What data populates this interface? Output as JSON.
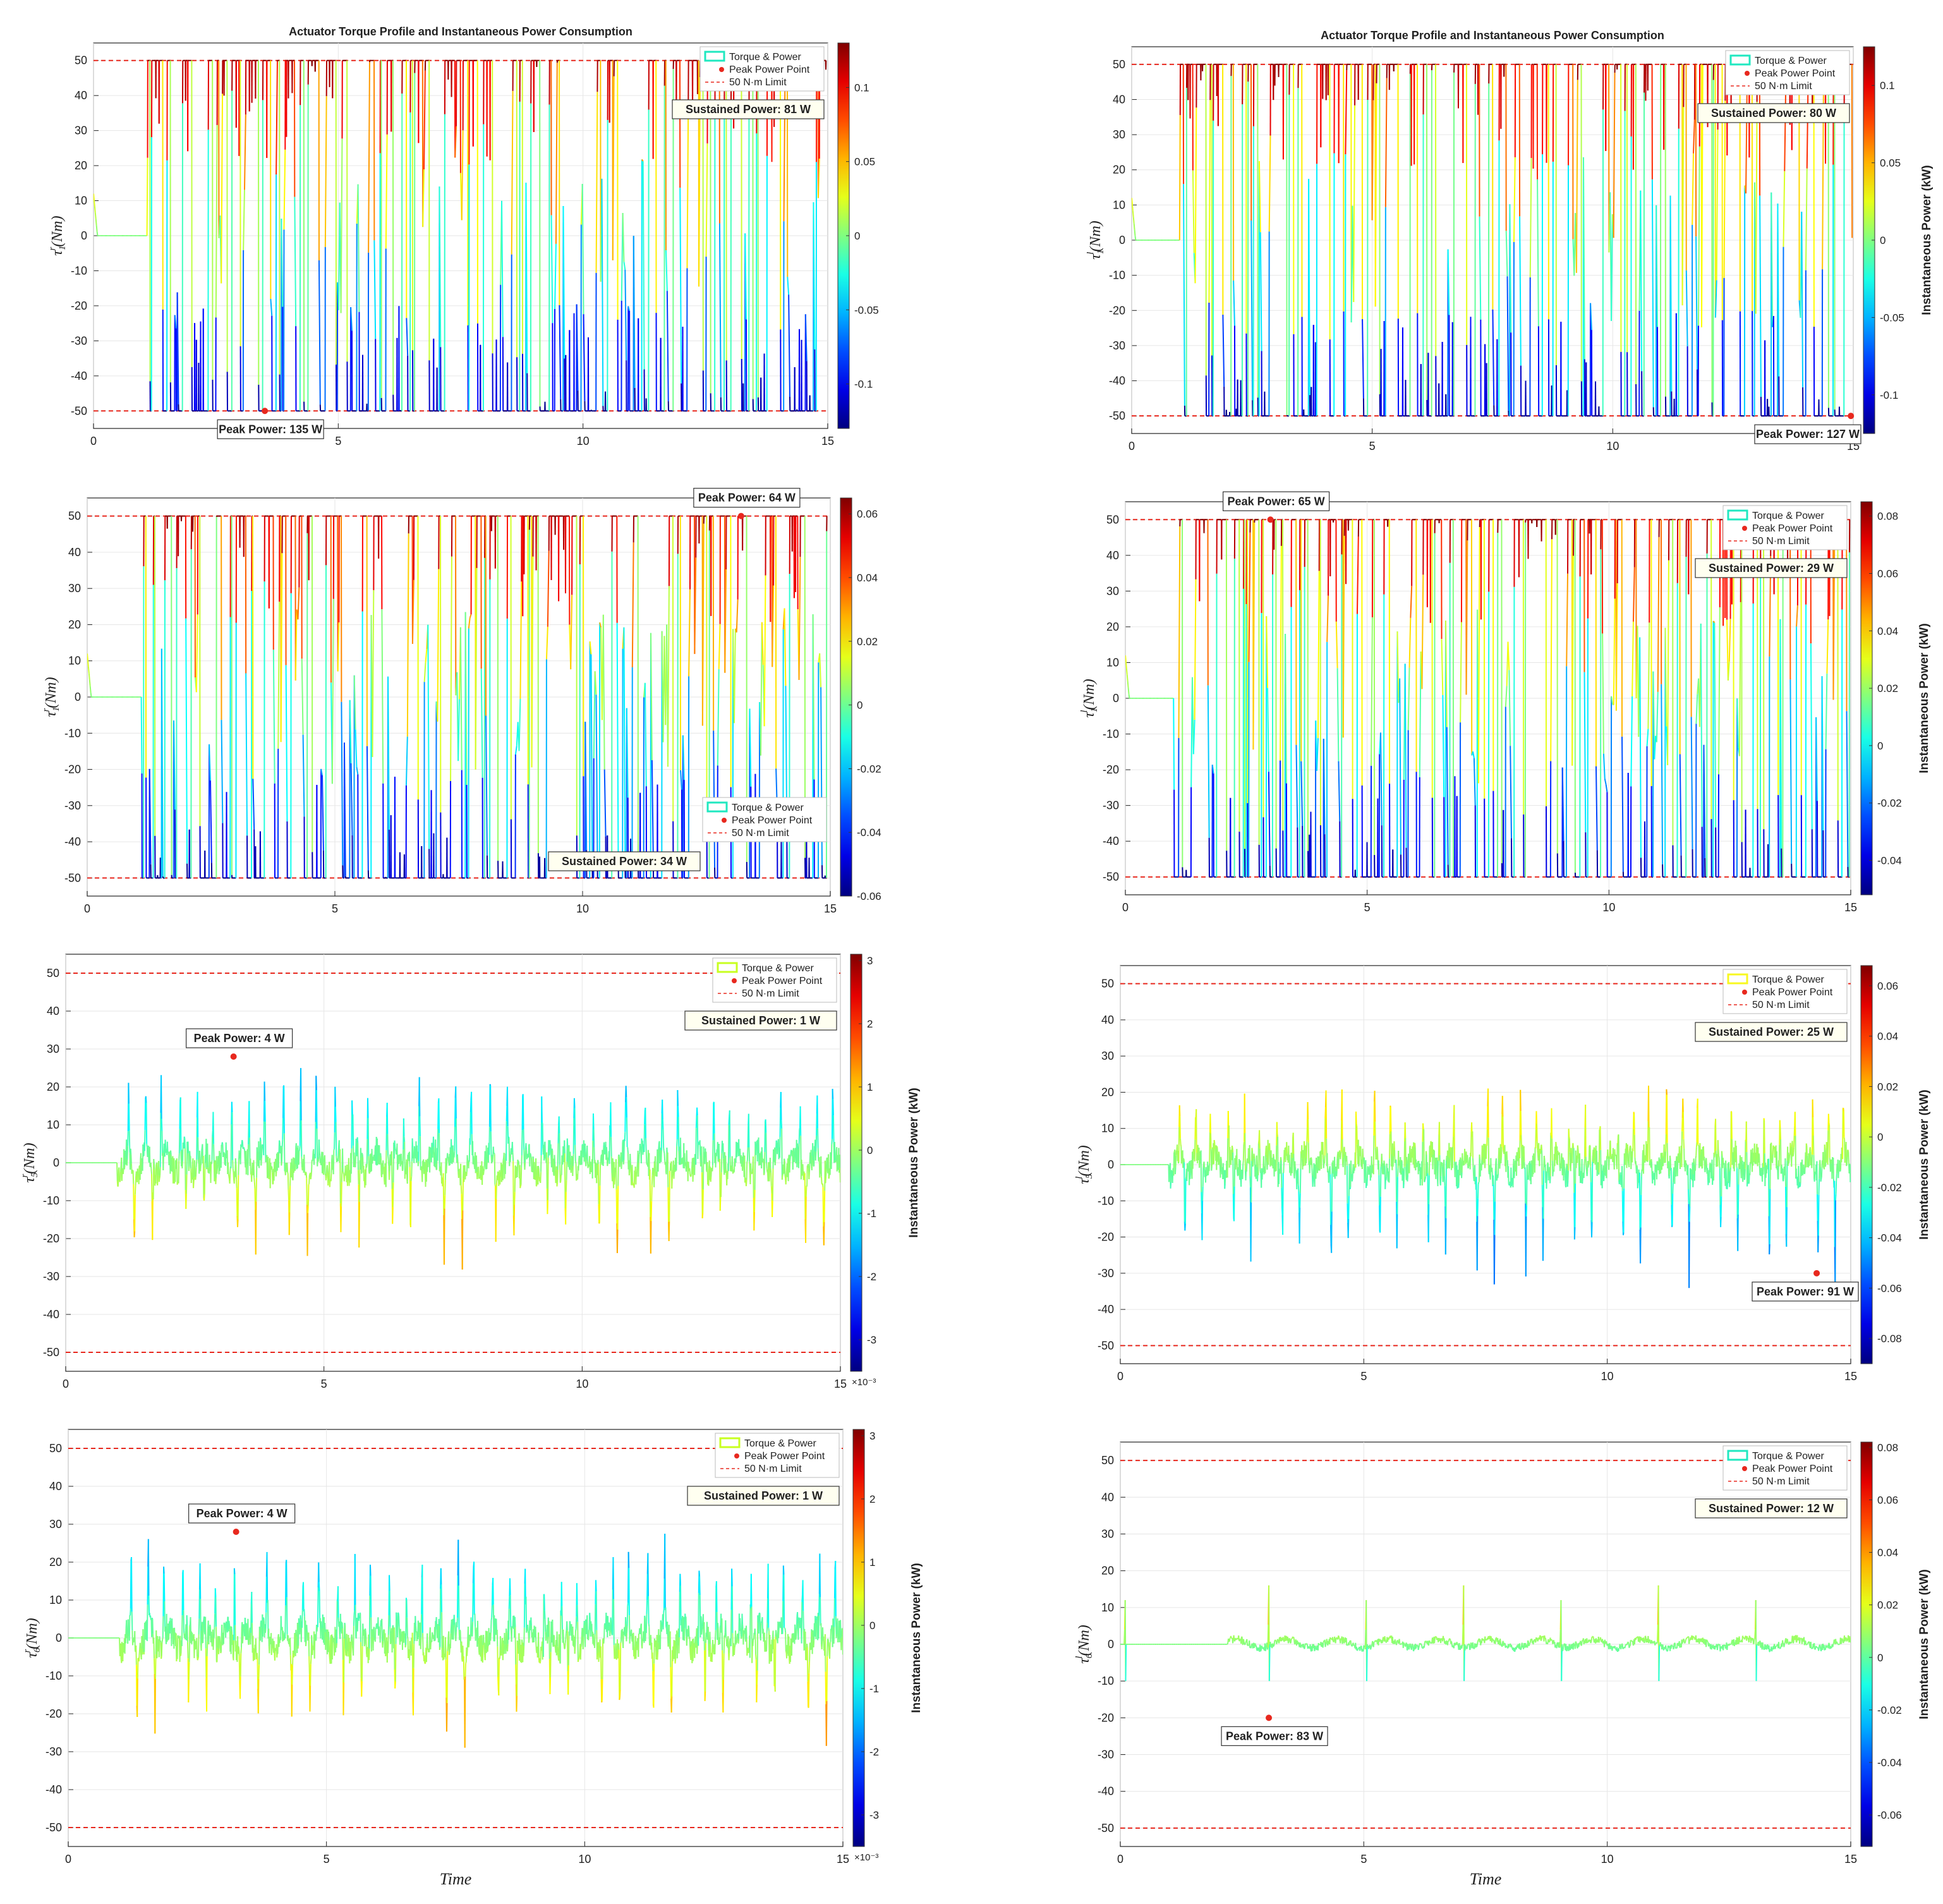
{
  "figure": {
    "shared_xlabel": "Time"
  },
  "colors": {
    "limit_line": "#e8281e",
    "peak_marker": "#e8281e",
    "legend_torque_cyan": "#20e8c0",
    "legend_torque_lime": "#c8ff20",
    "axis": "#222222",
    "grid": "#e6e6e6",
    "annotation_fill": "#fffff0"
  },
  "chart_data": [
    {
      "id": "r1",
      "type": "line",
      "side": "left",
      "row": 1,
      "title": "Actuator Torque Profile and Instantaneous Power Consumption",
      "ylabel_base": "τ",
      "ylabel_sup": "r",
      "ylabel_sub": "1",
      "ylabel_unit": "(Nm)",
      "xlabel": "",
      "xlim": [
        0,
        15
      ],
      "ylim": [
        -55,
        55
      ],
      "xticks": [
        0,
        5,
        10,
        15
      ],
      "yticks": [
        -50,
        -40,
        -30,
        -20,
        -10,
        0,
        10,
        20,
        30,
        40,
        50
      ],
      "color_axis": {
        "label": "",
        "clim": [
          -0.13,
          0.13
        ],
        "ticks": [
          -0.1,
          -0.05,
          0,
          0.05,
          0.1
        ],
        "tick_labels": [
          "-0.1",
          "-0.05",
          "0",
          "0.05",
          "0.1"
        ],
        "exponent": ""
      },
      "torque_limit": 50,
      "legend": {
        "position": "top-right",
        "torque_color": "#20e8c0",
        "entries": [
          "Torque & Power",
          "Peak Power Point",
          "50 N·m Limit"
        ]
      },
      "peak_power": {
        "label": "Peak Power: 135 W",
        "t": 3.5,
        "torque": -50
      },
      "sustained_power": {
        "label": "Sustained Power: 81 W"
      },
      "signal": {
        "style": "saturated",
        "onset": 1.1,
        "idle_until": 1.1,
        "density": 0.75,
        "amp": 50,
        "seed": 11,
        "cmap": "jet"
      }
    },
    {
      "id": "l1",
      "type": "line",
      "side": "right",
      "row": 1,
      "title": "Actuator Torque Profile and Instantaneous Power Consumption",
      "ylabel_base": "τ",
      "ylabel_sup": "l",
      "ylabel_sub": "1",
      "ylabel_unit": "(Nm)",
      "xlabel": "",
      "xlim": [
        0,
        15
      ],
      "ylim": [
        -55,
        55
      ],
      "xticks": [
        0,
        5,
        10,
        15
      ],
      "yticks": [
        -50,
        -40,
        -30,
        -20,
        -10,
        0,
        10,
        20,
        30,
        40,
        50
      ],
      "color_axis": {
        "label": "Instantaneous Power (kW)",
        "clim": [
          -0.125,
          0.125
        ],
        "ticks": [
          -0.1,
          -0.05,
          0,
          0.05,
          0.1
        ],
        "tick_labels": [
          "-0.1",
          "-0.05",
          "0",
          "0.05",
          "0.1"
        ],
        "exponent": ""
      },
      "torque_limit": 50,
      "legend": {
        "position": "top-right",
        "torque_color": "#20e8c0",
        "entries": [
          "Torque & Power",
          "Peak Power Point",
          "50 N·m Limit"
        ]
      },
      "peak_power": {
        "label": "Peak Power: 127 W",
        "t": 14.95,
        "torque": -50
      },
      "sustained_power": {
        "label": "Sustained Power: 80 W"
      },
      "signal": {
        "style": "saturated",
        "onset": 1.1,
        "idle_until": 1.0,
        "density": 0.7,
        "amp": 50,
        "seed": 23,
        "cmap": "jet"
      }
    },
    {
      "id": "r2",
      "type": "line",
      "side": "left",
      "row": 2,
      "title": "",
      "ylabel_base": "τ",
      "ylabel_sup": "r",
      "ylabel_sub": "1",
      "ylabel_unit": "(Nm)",
      "xlabel": "",
      "xlim": [
        0,
        15
      ],
      "ylim": [
        -55,
        55
      ],
      "xticks": [
        0,
        5,
        10,
        15
      ],
      "yticks": [
        -50,
        -40,
        -30,
        -20,
        -10,
        0,
        10,
        20,
        30,
        40,
        50
      ],
      "color_axis": {
        "label": "",
        "clim": [
          -0.06,
          0.065
        ],
        "ticks": [
          -0.06,
          -0.04,
          -0.02,
          0,
          0.02,
          0.04,
          0.06
        ],
        "tick_labels": [
          "-0.06",
          "-0.04",
          "-0.02",
          "0",
          "0.02",
          "0.04",
          "0.06"
        ],
        "exponent": ""
      },
      "torque_limit": 50,
      "legend": {
        "position": "bottom-right",
        "torque_color": "#20e8c0",
        "entries": [
          "Torque & Power",
          "Peak Power Point",
          "50 N·m Limit"
        ]
      },
      "peak_power": {
        "label": "Peak Power: 64 W",
        "t": 13.2,
        "torque": 50
      },
      "sustained_power": {
        "label": "Sustained Power: 34 W"
      },
      "signal": {
        "style": "saturated",
        "onset": 1.1,
        "idle_until": 1.1,
        "density": 0.55,
        "amp": 50,
        "seed": 37,
        "cmap": "jet"
      }
    },
    {
      "id": "l2",
      "type": "line",
      "side": "right",
      "row": 2,
      "title": "",
      "ylabel_base": "τ",
      "ylabel_sup": "l",
      "ylabel_sub": "1",
      "ylabel_unit": "(Nm)",
      "xlabel": "",
      "xlim": [
        0,
        15
      ],
      "ylim": [
        -55,
        55
      ],
      "xticks": [
        0,
        5,
        10,
        15
      ],
      "yticks": [
        -50,
        -40,
        -30,
        -20,
        -10,
        0,
        10,
        20,
        30,
        40,
        50
      ],
      "color_axis": {
        "label": "Instantaneous Power (kW)",
        "clim": [
          -0.052,
          0.085
        ],
        "ticks": [
          -0.04,
          -0.02,
          0,
          0.02,
          0.04,
          0.06,
          0.08
        ],
        "tick_labels": [
          "-0.04",
          "-0.02",
          "0",
          "0.02",
          "0.04",
          "0.06",
          "0.08"
        ],
        "exponent": ""
      },
      "torque_limit": 50,
      "legend": {
        "position": "top-right",
        "torque_color": "#20e8c0",
        "entries": [
          "Torque & Power",
          "Peak Power Point",
          "50 N·m Limit"
        ]
      },
      "peak_power": {
        "label": "Peak Power: 65 W",
        "t": 3.0,
        "torque": 50
      },
      "sustained_power": {
        "label": "Sustained Power: 29 W"
      },
      "signal": {
        "style": "saturated",
        "onset": 1.0,
        "idle_until": 1.0,
        "density": 0.6,
        "amp": 50,
        "seed": 41,
        "cmap": "jet"
      }
    },
    {
      "id": "r5",
      "type": "line",
      "side": "left",
      "row": 3,
      "title": "",
      "ylabel_base": "τ",
      "ylabel_sup": "r",
      "ylabel_sub": "5",
      "ylabel_unit": "(Nm)",
      "xlabel": "",
      "xlim": [
        0,
        15
      ],
      "ylim": [
        -55,
        55
      ],
      "xticks": [
        0,
        5,
        10,
        15
      ],
      "yticks": [
        -50,
        -40,
        -30,
        -20,
        -10,
        0,
        10,
        20,
        30,
        40,
        50
      ],
      "color_axis": {
        "label": "Instantaneous Power (kW)",
        "clim": [
          -3.5,
          3.1
        ],
        "ticks": [
          -3,
          -2,
          -1,
          0,
          1,
          2,
          3
        ],
        "tick_labels": [
          "-3",
          "-2",
          "-1",
          "0",
          "1",
          "2",
          "3"
        ],
        "exponent": "×10⁻³"
      },
      "torque_limit": 50,
      "legend": {
        "position": "top-right",
        "torque_color": "#c8ff20",
        "entries": [
          "Torque & Power",
          "Peak Power Point",
          "50 N·m Limit"
        ]
      },
      "peak_power": {
        "label": "Peak Power: 4 W",
        "t": 3.25,
        "torque": 28
      },
      "sustained_power": {
        "label": "Sustained Power: 1 W"
      },
      "signal": {
        "style": "periodic",
        "onset": 1.0,
        "idle_until": 1.0,
        "period": 1.0,
        "up": 25,
        "down": 24,
        "seed": 53,
        "cmap": "jet_inverted"
      }
    },
    {
      "id": "l5",
      "type": "line",
      "side": "right",
      "row": 3,
      "title": "",
      "ylabel_base": "τ",
      "ylabel_sup": "l",
      "ylabel_sub": "5",
      "ylabel_unit": "(Nm)",
      "xlabel": "",
      "xlim": [
        0,
        15
      ],
      "ylim": [
        -55,
        55
      ],
      "xticks": [
        0,
        5,
        10,
        15
      ],
      "yticks": [
        -50,
        -40,
        -30,
        -20,
        -10,
        0,
        10,
        20,
        30,
        40,
        50
      ],
      "color_axis": {
        "label": "Instantaneous Power (kW)",
        "clim": [
          -0.09,
          0.068
        ],
        "ticks": [
          -0.08,
          -0.06,
          -0.04,
          -0.02,
          0,
          0.02,
          0.04,
          0.06
        ],
        "tick_labels": [
          "-0.08",
          "-0.06",
          "-0.04",
          "-0.02",
          "0",
          "0.02",
          "0.04",
          "0.06"
        ],
        "exponent": ""
      },
      "torque_limit": 50,
      "legend": {
        "position": "top-right",
        "torque_color": "#f8f820",
        "entries": [
          "Torque & Power",
          "Peak Power Point",
          "50 N·m Limit"
        ]
      },
      "peak_power": {
        "label": "Peak Power: 91 W",
        "t": 14.3,
        "torque": -30
      },
      "sustained_power": {
        "label": "Sustained Power: 25 W"
      },
      "signal": {
        "style": "periodic",
        "onset": 1.0,
        "idle_until": 1.0,
        "period": 1.0,
        "up": 22,
        "down": 30,
        "seed": 61,
        "cmap": "jet"
      }
    },
    {
      "id": "r6",
      "type": "line",
      "side": "left",
      "row": 4,
      "title": "",
      "ylabel_base": "τ",
      "ylabel_sup": "r",
      "ylabel_sub": "6",
      "ylabel_unit": "(Nm)",
      "xlabel": "Time",
      "xlim": [
        0,
        15
      ],
      "ylim": [
        -55,
        55
      ],
      "xticks": [
        0,
        5,
        10,
        15
      ],
      "yticks": [
        -50,
        -40,
        -30,
        -20,
        -10,
        0,
        10,
        20,
        30,
        40,
        50
      ],
      "color_axis": {
        "label": "Instantaneous Power (kW)",
        "clim": [
          -3.5,
          3.1
        ],
        "ticks": [
          -3,
          -2,
          -1,
          0,
          1,
          2,
          3
        ],
        "tick_labels": [
          "-3",
          "-2",
          "-1",
          "0",
          "1",
          "2",
          "3"
        ],
        "exponent": "×10⁻³"
      },
      "torque_limit": 50,
      "legend": {
        "position": "top-right",
        "torque_color": "#c8ff20",
        "entries": [
          "Torque & Power",
          "Peak Power Point",
          "50 N·m Limit"
        ]
      },
      "peak_power": {
        "label": "Peak Power: 4 W",
        "t": 3.25,
        "torque": 28
      },
      "sustained_power": {
        "label": "Sustained Power: 1 W"
      },
      "signal": {
        "style": "periodic",
        "onset": 1.0,
        "idle_until": 1.0,
        "period": 1.0,
        "up": 25,
        "down": 24,
        "seed": 67,
        "cmap": "jet_inverted"
      }
    },
    {
      "id": "l6",
      "type": "line",
      "side": "right",
      "row": 4,
      "title": "",
      "ylabel_base": "τ",
      "ylabel_sup": "l",
      "ylabel_sub": "6",
      "ylabel_unit": "(Nm)",
      "xlabel": "Time",
      "xlim": [
        0,
        15
      ],
      "ylim": [
        -55,
        55
      ],
      "xticks": [
        0,
        5,
        10,
        15
      ],
      "yticks": [
        -50,
        -40,
        -30,
        -20,
        -10,
        0,
        10,
        20,
        30,
        40,
        50
      ],
      "color_axis": {
        "label": "Instantaneous Power (kW)",
        "clim": [
          -0.072,
          0.082
        ],
        "ticks": [
          -0.06,
          -0.04,
          -0.02,
          0,
          0.02,
          0.04,
          0.06,
          0.08
        ],
        "tick_labels": [
          "-0.06",
          "-0.04",
          "-0.02",
          "0",
          "0.02",
          "0.04",
          "0.06",
          "0.08"
        ],
        "exponent": ""
      },
      "torque_limit": 50,
      "legend": {
        "position": "top-right",
        "torque_color": "#20e8c0",
        "entries": [
          "Torque & Power",
          "Peak Power Point",
          "50 N·m Limit"
        ]
      },
      "peak_power": {
        "label": "Peak Power: 83 W",
        "t": 3.05,
        "torque": -20
      },
      "sustained_power": {
        "label": "Sustained Power: 12 W"
      },
      "signal": {
        "style": "sparse",
        "onset": 0.05,
        "idle_until": 0.05,
        "spikes": [
          0.1,
          3.05,
          5.05,
          7.05,
          9.05,
          11.05,
          13.05
        ],
        "seed": 71,
        "cmap": "jet"
      }
    }
  ]
}
